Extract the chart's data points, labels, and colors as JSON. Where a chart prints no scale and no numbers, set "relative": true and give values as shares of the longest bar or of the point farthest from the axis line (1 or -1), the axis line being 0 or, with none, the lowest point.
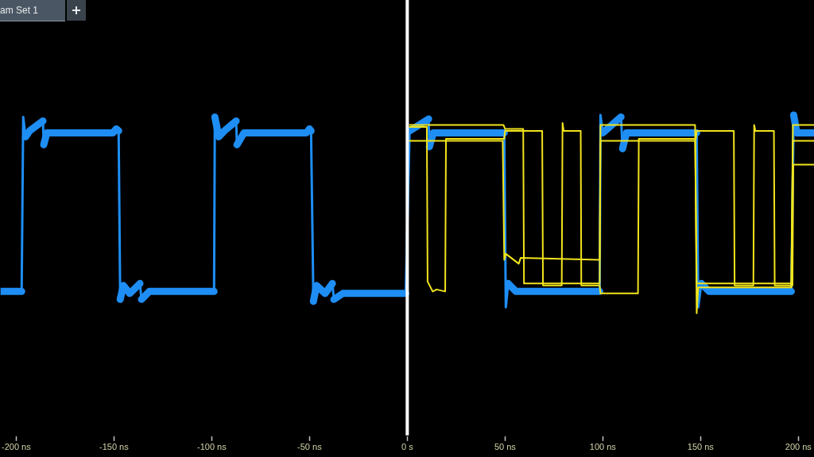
{
  "chart_data": {
    "type": "line",
    "relative": true,
    "xlim": [
      -208,
      208
    ],
    "xticks": [
      {
        "value": -200,
        "label": "-200 ns"
      },
      {
        "value": -150,
        "label": "-150 ns"
      },
      {
        "value": -100,
        "label": "-100 ns"
      },
      {
        "value": -50,
        "label": "-50 ns"
      },
      {
        "value": 0,
        "label": "0 s"
      },
      {
        "value": 50,
        "label": "50 ns"
      },
      {
        "value": 100,
        "label": "100 ns"
      },
      {
        "value": 150,
        "label": "150 ns"
      },
      {
        "value": 200,
        "label": "200 ns"
      }
    ],
    "annotations": [
      "am Set 1"
    ],
    "ref_lines": [
      {
        "axis": "x",
        "value": 0,
        "color": "#ffffff"
      }
    ],
    "series": [
      {
        "color": "#1e8ef5",
        "x": [
          -208,
          -197.2,
          -196.4,
          -195.2,
          -193.1,
          -186.3,
          -185.9,
          -184.3,
          -150.5,
          -148.8,
          -147.6,
          -146.8,
          -145.2,
          -141.9,
          -136.7,
          -135.9,
          -131.9,
          -98.8,
          -98.4,
          -96.4,
          -93.5,
          -87.5,
          -87.1,
          -83.5,
          -51.5,
          -50,
          -49.2,
          -48,
          -46.4,
          -42,
          -38.3,
          -37.5,
          -33,
          -0.8,
          1.2,
          10.9,
          11.3,
          13.3,
          48.8,
          49.6,
          50.4,
          51.6,
          55.6,
          98.4,
          98.8,
          100,
          109.3,
          110.1,
          112.1,
          147.2,
          148,
          148.8,
          150.4,
          154.4,
          196.4,
          197.6,
          199.2,
          208
        ],
        "values": [
          0.11,
          0.11,
          0.99,
          0.89,
          0.92,
          0.97,
          0.85,
          0.91,
          0.91,
          0.93,
          0.92,
          0.07,
          0.14,
          0.1,
          0.15,
          0.07,
          0.11,
          0.11,
          0.99,
          0.89,
          0.92,
          0.97,
          0.85,
          0.91,
          0.91,
          0.93,
          0.92,
          0.06,
          0.14,
          0.1,
          0.15,
          0.07,
          0.1,
          0.1,
          0.92,
          0.98,
          0.84,
          0.91,
          0.91,
          0.91,
          0.03,
          0.15,
          0.11,
          0.11,
          1.0,
          0.91,
          0.99,
          0.83,
          0.91,
          0.91,
          0.91,
          0.03,
          0.15,
          0.11,
          0.11,
          1.0,
          0.91,
          0.91
        ]
      },
      {
        "color": "#f2e41c",
        "x": [
          1.2,
          10,
          10.4,
          13,
          15,
          19.4,
          19.8,
          49.6,
          50,
          69,
          69.4,
          79,
          79.4,
          80,
          88.7,
          89,
          98.4,
          98.8,
          118,
          118.4,
          147.6,
          148,
          167,
          167.4,
          177,
          177.4,
          178,
          187.5,
          187.9,
          197,
          197.4,
          208
        ],
        "values": [
          0.94,
          0.94,
          0.16,
          0.11,
          0.12,
          0.11,
          0.88,
          0.88,
          0.92,
          0.92,
          0.14,
          0.14,
          0.96,
          0.92,
          0.92,
          0.14,
          0.14,
          0.1,
          0.1,
          0.88,
          0.88,
          0.92,
          0.92,
          0.14,
          0.14,
          0.95,
          0.92,
          0.92,
          0.14,
          0.14,
          0.75,
          0.75
        ]
      },
      {
        "color": "#f2e41c",
        "x": [
          1.2,
          48.8,
          49.6,
          50.4,
          57,
          58,
          98.4,
          98.8,
          147.2,
          148,
          148.8,
          196.4,
          197.2,
          208
        ],
        "values": [
          0.87,
          0.87,
          0.27,
          0.3,
          0.25,
          0.28,
          0.27,
          0.95,
          0.95,
          0,
          0.13,
          0.13,
          0.95,
          0.95
        ]
      },
      {
        "color": "#f2e41c",
        "x": [
          1.2,
          49.2,
          50,
          59.3,
          59.7,
          98.4,
          98.8,
          147.2,
          148,
          196.4,
          197.2,
          208
        ],
        "values": [
          0.95,
          0.95,
          0.93,
          0.93,
          0.15,
          0.15,
          0.87,
          0.87,
          0.15,
          0.15,
          0.87,
          0.87
        ]
      }
    ]
  }
}
